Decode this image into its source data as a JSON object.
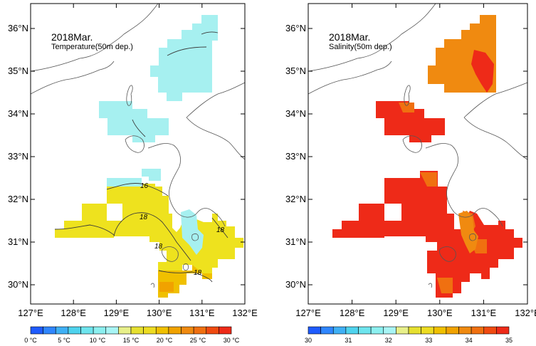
{
  "panels": [
    {
      "title": "2018Mar.",
      "subtitle": "Temperature(50m dep.)",
      "x_ticks": [
        "127°E",
        "128°E",
        "129°E",
        "130°E",
        "131°E",
        "132°E"
      ],
      "y_ticks": [
        "30°N",
        "31°N",
        "32°N",
        "33°N",
        "34°N",
        "35°N",
        "36°N"
      ],
      "contour_labels": [
        "16",
        "18",
        "18",
        "18",
        "18"
      ],
      "colorbar": {
        "labels": [
          "0 °C",
          "5 °C",
          "10 °C",
          "15 °C",
          "20 °C",
          "25 °C",
          "30 °C"
        ],
        "colors": [
          "#1e5bff",
          "#2f86ff",
          "#3fb0f5",
          "#4fd3ee",
          "#6ee5ee",
          "#8cf0f0",
          "#a8f5f5",
          "#e8f08a",
          "#e6e030",
          "#eddc22",
          "#f0c000",
          "#f1a200",
          "#f08a10",
          "#f07010",
          "#f04a10",
          "#ee2a18"
        ]
      }
    },
    {
      "title": "2018Mar.",
      "subtitle": "Salinity(50m dep.)",
      "x_ticks": [
        "127°E",
        "128°E",
        "129°E",
        "130°E",
        "131°E",
        "132°E"
      ],
      "y_ticks": [
        "30°N",
        "31°N",
        "32°N",
        "33°N",
        "34°N",
        "35°N",
        "36°N"
      ],
      "contour_labels": [],
      "colorbar": {
        "labels": [
          "30",
          "31",
          "32",
          "33",
          "34",
          "35"
        ],
        "colors": [
          "#1e5bff",
          "#2f86ff",
          "#3fb0f5",
          "#4fd3ee",
          "#6ee5ee",
          "#8cf0f0",
          "#a8f5f5",
          "#e8f08a",
          "#e6e030",
          "#eddc22",
          "#f0c000",
          "#f1a200",
          "#f08a10",
          "#f07010",
          "#f04a10",
          "#ee2a18"
        ]
      }
    }
  ]
}
